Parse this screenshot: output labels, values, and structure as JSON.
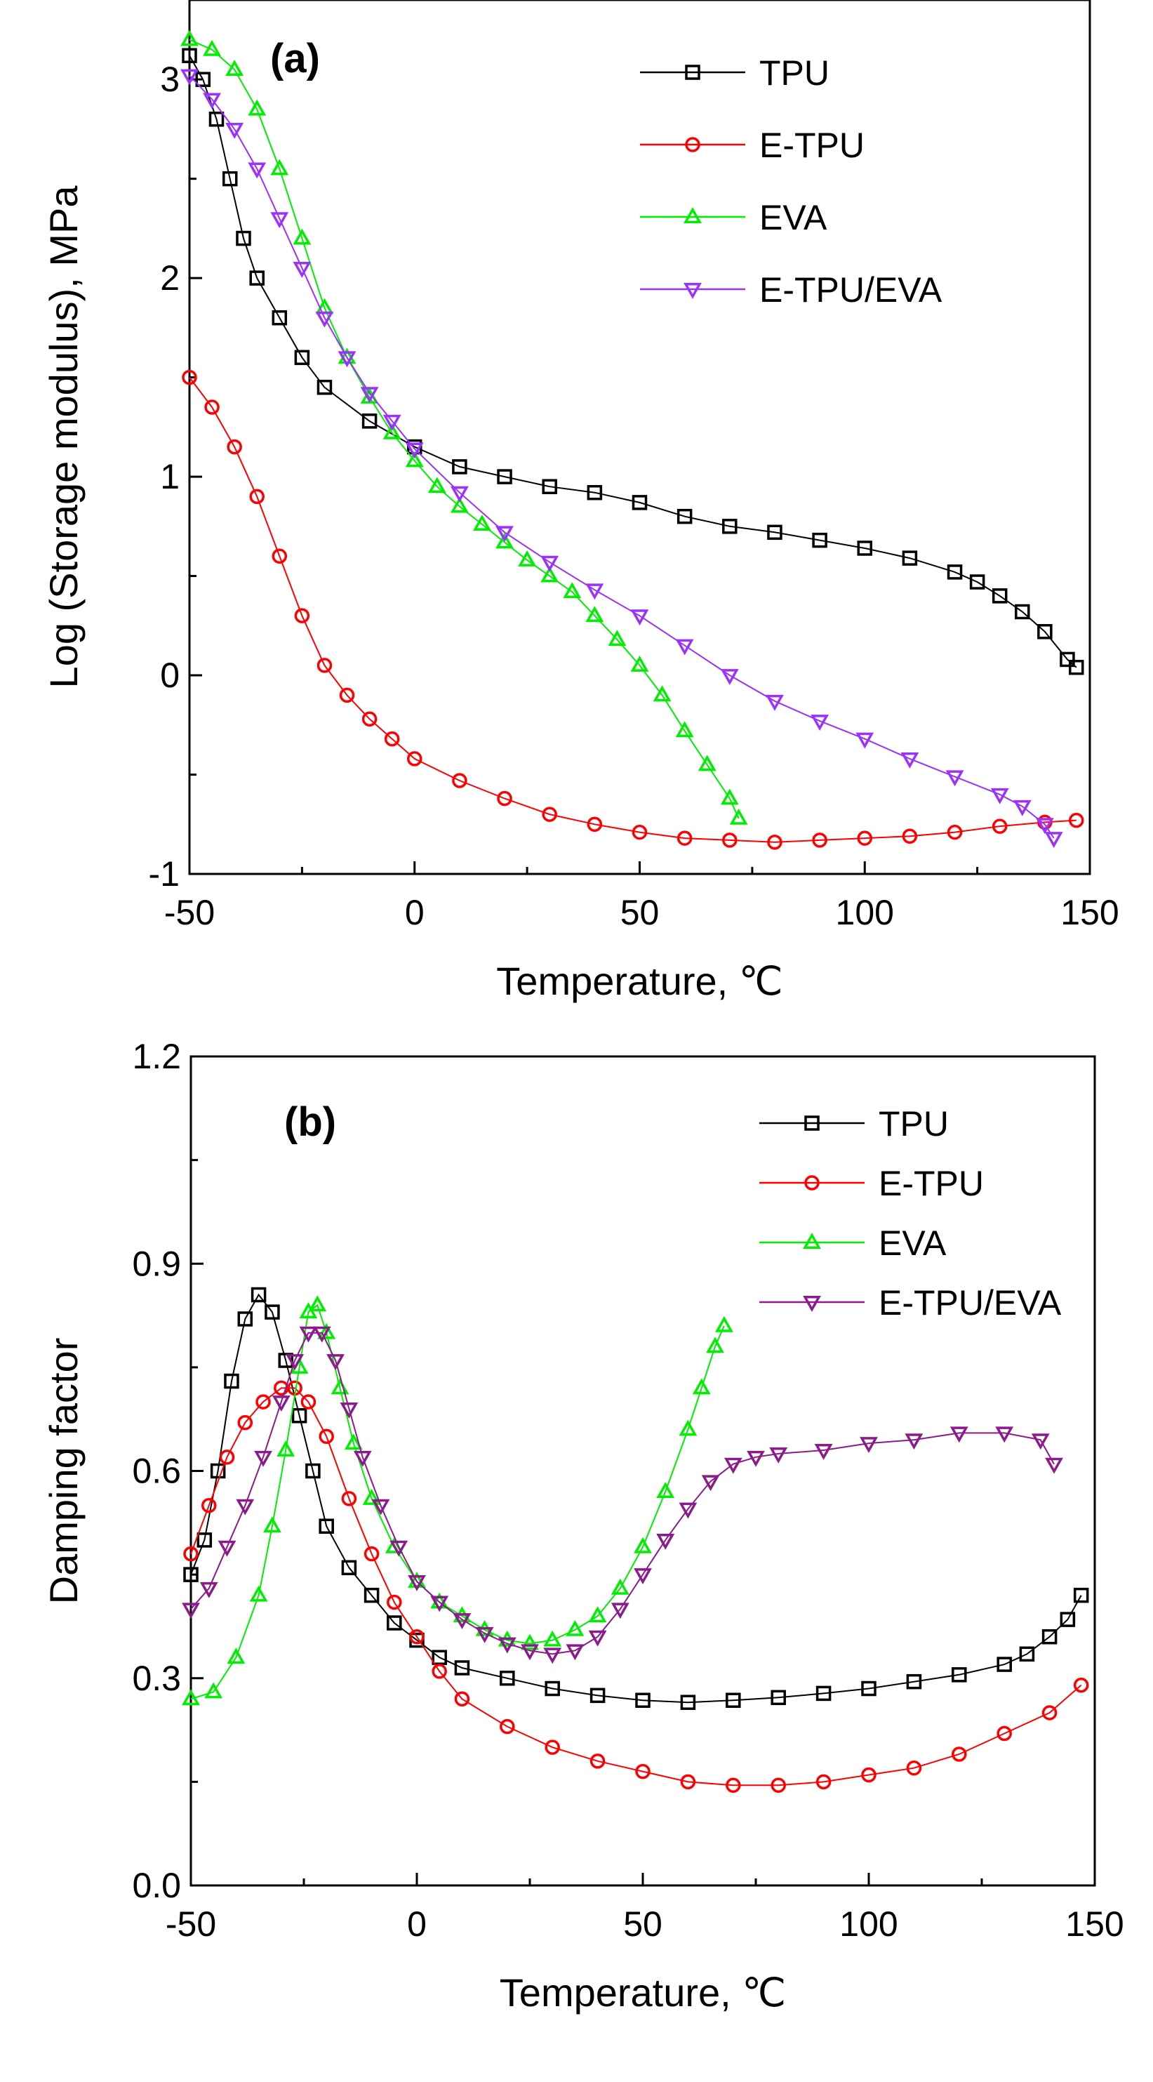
{
  "chart_data": [
    {
      "type": "scatter",
      "panel_label": "(a)",
      "xlabel": "Temperature, ℃",
      "ylabel": "Log (Storage modulus), MPa",
      "xlim": [
        -50,
        150
      ],
      "ylim": [
        -1,
        3.4
      ],
      "xticks": [
        -50,
        0,
        50,
        100,
        150
      ],
      "yticks": [
        -1,
        0,
        1,
        2,
        3
      ],
      "legend_position": "top-right",
      "series": [
        {
          "name": "TPU",
          "color": "#000000",
          "marker": "square",
          "points": [
            [
              -50,
              3.12
            ],
            [
              -47,
              3.0
            ],
            [
              -44,
              2.8
            ],
            [
              -41,
              2.5
            ],
            [
              -38,
              2.2
            ],
            [
              -35,
              2.0
            ],
            [
              -30,
              1.8
            ],
            [
              -25,
              1.6
            ],
            [
              -20,
              1.45
            ],
            [
              -10,
              1.28
            ],
            [
              0,
              1.15
            ],
            [
              10,
              1.05
            ],
            [
              20,
              1.0
            ],
            [
              30,
              0.95
            ],
            [
              40,
              0.92
            ],
            [
              50,
              0.87
            ],
            [
              60,
              0.8
            ],
            [
              70,
              0.75
            ],
            [
              80,
              0.72
            ],
            [
              90,
              0.68
            ],
            [
              100,
              0.64
            ],
            [
              110,
              0.59
            ],
            [
              120,
              0.52
            ],
            [
              125,
              0.47
            ],
            [
              130,
              0.4
            ],
            [
              135,
              0.32
            ],
            [
              140,
              0.22
            ],
            [
              145,
              0.08
            ],
            [
              147,
              0.04
            ]
          ]
        },
        {
          "name": "E-TPU",
          "color": "#ff0000",
          "marker": "circle",
          "points": [
            [
              -50,
              1.5
            ],
            [
              -45,
              1.35
            ],
            [
              -40,
              1.15
            ],
            [
              -35,
              0.9
            ],
            [
              -30,
              0.6
            ],
            [
              -25,
              0.3
            ],
            [
              -20,
              0.05
            ],
            [
              -15,
              -0.1
            ],
            [
              -10,
              -0.22
            ],
            [
              -5,
              -0.32
            ],
            [
              0,
              -0.42
            ],
            [
              10,
              -0.53
            ],
            [
              20,
              -0.62
            ],
            [
              30,
              -0.7
            ],
            [
              40,
              -0.75
            ],
            [
              50,
              -0.79
            ],
            [
              60,
              -0.82
            ],
            [
              70,
              -0.83
            ],
            [
              80,
              -0.84
            ],
            [
              90,
              -0.83
            ],
            [
              100,
              -0.82
            ],
            [
              110,
              -0.81
            ],
            [
              120,
              -0.79
            ],
            [
              130,
              -0.76
            ],
            [
              140,
              -0.74
            ],
            [
              147,
              -0.73
            ]
          ]
        },
        {
          "name": "EVA",
          "color": "#00ee00",
          "marker": "triangle-up",
          "points": [
            [
              -50,
              3.2
            ],
            [
              -45,
              3.15
            ],
            [
              -40,
              3.05
            ],
            [
              -35,
              2.85
            ],
            [
              -30,
              2.55
            ],
            [
              -25,
              2.2
            ],
            [
              -20,
              1.85
            ],
            [
              -15,
              1.6
            ],
            [
              -10,
              1.4
            ],
            [
              -5,
              1.22
            ],
            [
              0,
              1.08
            ],
            [
              5,
              0.95
            ],
            [
              10,
              0.85
            ],
            [
              15,
              0.76
            ],
            [
              20,
              0.67
            ],
            [
              25,
              0.58
            ],
            [
              30,
              0.5
            ],
            [
              35,
              0.42
            ],
            [
              40,
              0.3
            ],
            [
              45,
              0.18
            ],
            [
              50,
              0.05
            ],
            [
              55,
              -0.1
            ],
            [
              60,
              -0.28
            ],
            [
              65,
              -0.45
            ],
            [
              70,
              -0.62
            ],
            [
              72,
              -0.72
            ]
          ]
        },
        {
          "name": "E-TPU/EVA",
          "color": "#9b30ff",
          "marker": "triangle-down",
          "points": [
            [
              -50,
              3.02
            ],
            [
              -45,
              2.9
            ],
            [
              -40,
              2.75
            ],
            [
              -35,
              2.55
            ],
            [
              -30,
              2.3
            ],
            [
              -25,
              2.05
            ],
            [
              -20,
              1.8
            ],
            [
              -15,
              1.6
            ],
            [
              -10,
              1.42
            ],
            [
              -5,
              1.28
            ],
            [
              0,
              1.14
            ],
            [
              10,
              0.92
            ],
            [
              20,
              0.72
            ],
            [
              30,
              0.57
            ],
            [
              40,
              0.43
            ],
            [
              50,
              0.3
            ],
            [
              60,
              0.15
            ],
            [
              70,
              0.0
            ],
            [
              80,
              -0.13
            ],
            [
              90,
              -0.23
            ],
            [
              100,
              -0.32
            ],
            [
              110,
              -0.42
            ],
            [
              120,
              -0.51
            ],
            [
              130,
              -0.6
            ],
            [
              135,
              -0.66
            ],
            [
              140,
              -0.75
            ],
            [
              142,
              -0.82
            ]
          ]
        }
      ]
    },
    {
      "type": "scatter",
      "panel_label": "(b)",
      "xlabel": "Temperature, ℃",
      "ylabel": "Damping factor",
      "xlim": [
        -50,
        150
      ],
      "ylim": [
        0.0,
        1.2
      ],
      "xticks": [
        -50,
        0,
        50,
        100,
        150
      ],
      "yticks": [
        0.0,
        0.3,
        0.6,
        0.9,
        1.2
      ],
      "ytick_labels": [
        "0.0",
        "0.3",
        "0.6",
        "0.9",
        "1.2"
      ],
      "legend_position": "top-right",
      "series": [
        {
          "name": "TPU",
          "color": "#000000",
          "marker": "square",
          "points": [
            [
              -50,
              0.45
            ],
            [
              -47,
              0.5
            ],
            [
              -44,
              0.6
            ],
            [
              -41,
              0.73
            ],
            [
              -38,
              0.82
            ],
            [
              -35,
              0.855
            ],
            [
              -32,
              0.83
            ],
            [
              -29,
              0.76
            ],
            [
              -26,
              0.68
            ],
            [
              -23,
              0.6
            ],
            [
              -20,
              0.52
            ],
            [
              -15,
              0.46
            ],
            [
              -10,
              0.42
            ],
            [
              -5,
              0.38
            ],
            [
              0,
              0.355
            ],
            [
              5,
              0.33
            ],
            [
              10,
              0.315
            ],
            [
              20,
              0.3
            ],
            [
              30,
              0.285
            ],
            [
              40,
              0.275
            ],
            [
              50,
              0.268
            ],
            [
              60,
              0.265
            ],
            [
              70,
              0.268
            ],
            [
              80,
              0.272
            ],
            [
              90,
              0.278
            ],
            [
              100,
              0.285
            ],
            [
              110,
              0.295
            ],
            [
              120,
              0.305
            ],
            [
              130,
              0.32
            ],
            [
              135,
              0.335
            ],
            [
              140,
              0.36
            ],
            [
              144,
              0.385
            ],
            [
              147,
              0.42
            ]
          ]
        },
        {
          "name": "E-TPU",
          "color": "#ff0000",
          "marker": "circle",
          "points": [
            [
              -50,
              0.48
            ],
            [
              -46,
              0.55
            ],
            [
              -42,
              0.62
            ],
            [
              -38,
              0.67
            ],
            [
              -34,
              0.7
            ],
            [
              -30,
              0.72
            ],
            [
              -27,
              0.72
            ],
            [
              -24,
              0.7
            ],
            [
              -20,
              0.65
            ],
            [
              -15,
              0.56
            ],
            [
              -10,
              0.48
            ],
            [
              -5,
              0.41
            ],
            [
              0,
              0.36
            ],
            [
              5,
              0.31
            ],
            [
              10,
              0.27
            ],
            [
              20,
              0.23
            ],
            [
              30,
              0.2
            ],
            [
              40,
              0.18
            ],
            [
              50,
              0.165
            ],
            [
              60,
              0.15
            ],
            [
              70,
              0.145
            ],
            [
              80,
              0.145
            ],
            [
              90,
              0.15
            ],
            [
              100,
              0.16
            ],
            [
              110,
              0.17
            ],
            [
              120,
              0.19
            ],
            [
              130,
              0.22
            ],
            [
              140,
              0.25
            ],
            [
              147,
              0.29
            ]
          ]
        },
        {
          "name": "EVA",
          "color": "#00ee00",
          "marker": "triangle-up",
          "points": [
            [
              -50,
              0.27
            ],
            [
              -45,
              0.28
            ],
            [
              -40,
              0.33
            ],
            [
              -35,
              0.42
            ],
            [
              -32,
              0.52
            ],
            [
              -29,
              0.63
            ],
            [
              -26,
              0.75
            ],
            [
              -24,
              0.83
            ],
            [
              -22,
              0.84
            ],
            [
              -20,
              0.8
            ],
            [
              -17,
              0.72
            ],
            [
              -14,
              0.64
            ],
            [
              -10,
              0.56
            ],
            [
              -5,
              0.49
            ],
            [
              0,
              0.44
            ],
            [
              5,
              0.41
            ],
            [
              10,
              0.39
            ],
            [
              15,
              0.37
            ],
            [
              20,
              0.355
            ],
            [
              25,
              0.35
            ],
            [
              30,
              0.355
            ],
            [
              35,
              0.37
            ],
            [
              40,
              0.39
            ],
            [
              45,
              0.43
            ],
            [
              50,
              0.49
            ],
            [
              55,
              0.57
            ],
            [
              60,
              0.66
            ],
            [
              63,
              0.72
            ],
            [
              66,
              0.78
            ],
            [
              68,
              0.81
            ]
          ]
        },
        {
          "name": "E-TPU/EVA",
          "color": "#8b1a8b",
          "marker": "triangle-down",
          "points": [
            [
              -50,
              0.4
            ],
            [
              -46,
              0.43
            ],
            [
              -42,
              0.49
            ],
            [
              -38,
              0.55
            ],
            [
              -34,
              0.62
            ],
            [
              -30,
              0.7
            ],
            [
              -27,
              0.76
            ],
            [
              -24,
              0.8
            ],
            [
              -21,
              0.8
            ],
            [
              -18,
              0.76
            ],
            [
              -15,
              0.69
            ],
            [
              -12,
              0.62
            ],
            [
              -8,
              0.55
            ],
            [
              -4,
              0.49
            ],
            [
              0,
              0.44
            ],
            [
              5,
              0.41
            ],
            [
              10,
              0.385
            ],
            [
              15,
              0.365
            ],
            [
              20,
              0.35
            ],
            [
              25,
              0.34
            ],
            [
              30,
              0.335
            ],
            [
              35,
              0.34
            ],
            [
              40,
              0.36
            ],
            [
              45,
              0.4
            ],
            [
              50,
              0.45
            ],
            [
              55,
              0.5
            ],
            [
              60,
              0.545
            ],
            [
              65,
              0.585
            ],
            [
              70,
              0.61
            ],
            [
              75,
              0.62
            ],
            [
              80,
              0.625
            ],
            [
              90,
              0.63
            ],
            [
              100,
              0.64
            ],
            [
              110,
              0.645
            ],
            [
              120,
              0.655
            ],
            [
              130,
              0.655
            ],
            [
              138,
              0.645
            ],
            [
              141,
              0.61
            ]
          ]
        }
      ]
    }
  ]
}
